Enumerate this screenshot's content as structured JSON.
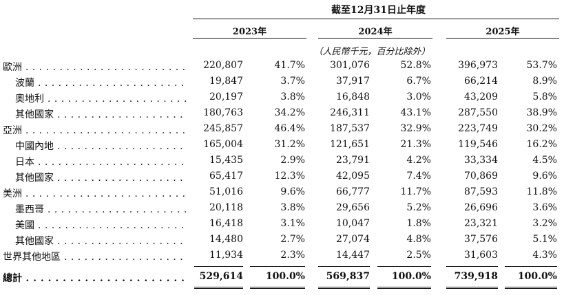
{
  "header": {
    "title": "截至12月31日止年度",
    "years": [
      "2023年",
      "2024年",
      "2025年"
    ],
    "unit": "（人民幣千元，百分比除外）"
  },
  "rows": [
    {
      "label": "歐洲",
      "values": [
        "220,807",
        "41.7%",
        "301,076",
        "52.8%",
        "396,973",
        "53.7%"
      ]
    },
    {
      "label": "波蘭",
      "values": [
        "19,847",
        "3.7%",
        "37,917",
        "6.7%",
        "66,214",
        "8.9%"
      ]
    },
    {
      "label": "奧地利",
      "values": [
        "20,197",
        "3.8%",
        "16,848",
        "3.0%",
        "43,209",
        "5.8%"
      ]
    },
    {
      "label": "其他國家",
      "values": [
        "180,763",
        "34.2%",
        "246,311",
        "43.1%",
        "287,550",
        "38.9%"
      ]
    },
    {
      "label": "亞洲",
      "values": [
        "245,857",
        "46.4%",
        "187,537",
        "32.9%",
        "223,749",
        "30.2%"
      ]
    },
    {
      "label": "中國內地",
      "values": [
        "165,004",
        "31.2%",
        "121,651",
        "21.3%",
        "119,546",
        "16.2%"
      ]
    },
    {
      "label": "日本",
      "values": [
        "15,435",
        "2.9%",
        "23,791",
        "4.2%",
        "33,334",
        "4.5%"
      ]
    },
    {
      "label": "其他國家",
      "values": [
        "65,417",
        "12.3%",
        "42,095",
        "7.4%",
        "70,869",
        "9.6%"
      ]
    },
    {
      "label": "美洲",
      "values": [
        "51,016",
        "9.6%",
        "66,777",
        "11.7%",
        "87,593",
        "11.8%"
      ]
    },
    {
      "label": "墨西哥",
      "values": [
        "20,118",
        "3.8%",
        "29,656",
        "5.2%",
        "26,696",
        "3.6%"
      ]
    },
    {
      "label": "美國",
      "values": [
        "16,418",
        "3.1%",
        "10,047",
        "1.8%",
        "23,321",
        "3.2%"
      ]
    },
    {
      "label": "其他國家",
      "values": [
        "14,480",
        "2.7%",
        "27,074",
        "4.8%",
        "37,576",
        "5.1%"
      ]
    },
    {
      "label": "世界其他地區",
      "values": [
        "11,934",
        "2.3%",
        "14,447",
        "2.5%",
        "31,603",
        "4.3%"
      ]
    }
  ],
  "total": {
    "label": "總計",
    "values": [
      "529,614",
      "100.0%",
      "569,837",
      "100.0%",
      "739,918",
      "100.0%"
    ]
  }
}
